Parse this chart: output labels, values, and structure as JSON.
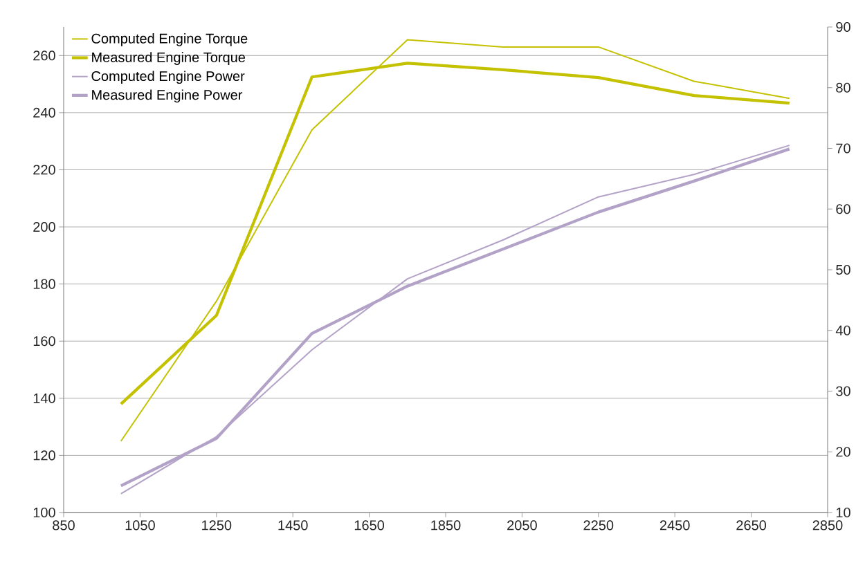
{
  "chart_data": {
    "type": "line",
    "x": [
      1000,
      1250,
      1500,
      1750,
      2000,
      2250,
      2500,
      2750
    ],
    "series": [
      {
        "name": "Computed Engine Torque",
        "color": "#c4c200",
        "values": [
          125,
          174,
          234,
          265.5,
          263,
          263,
          251,
          245
        ]
      },
      {
        "name": "Measured Engine Torque",
        "color": "#c4c200",
        "values": [
          138,
          169,
          252.5,
          257.3,
          255,
          252.3,
          246,
          243.3
        ]
      },
      {
        "name": "Computed Engine Power",
        "color": "#b3a2c7",
        "axis": "y2",
        "values": [
          13.1,
          22.5,
          36.8,
          48.5,
          54.9,
          62.0,
          65.7,
          70.5
        ]
      },
      {
        "name": "Measured Engine Power",
        "color": "#b3a2c7",
        "axis": "y2",
        "values": [
          14.4,
          22.2,
          39.5,
          47.3,
          53.4,
          59.5,
          64.6,
          69.9
        ]
      }
    ],
    "xlim": [
      850,
      2850
    ],
    "xticks": [
      850,
      1050,
      1250,
      1450,
      1650,
      1850,
      2050,
      2250,
      2450,
      2650,
      2850
    ],
    "ylim": [
      100,
      270
    ],
    "yticks": [
      100,
      120,
      140,
      160,
      180,
      200,
      220,
      240,
      260
    ],
    "y2lim": [
      10,
      90
    ],
    "y2ticks": [
      10,
      20,
      30,
      40,
      50,
      60,
      70,
      80,
      90
    ],
    "grid": "y",
    "legend": "top left",
    "line_style": "solid",
    "marker": "none"
  }
}
